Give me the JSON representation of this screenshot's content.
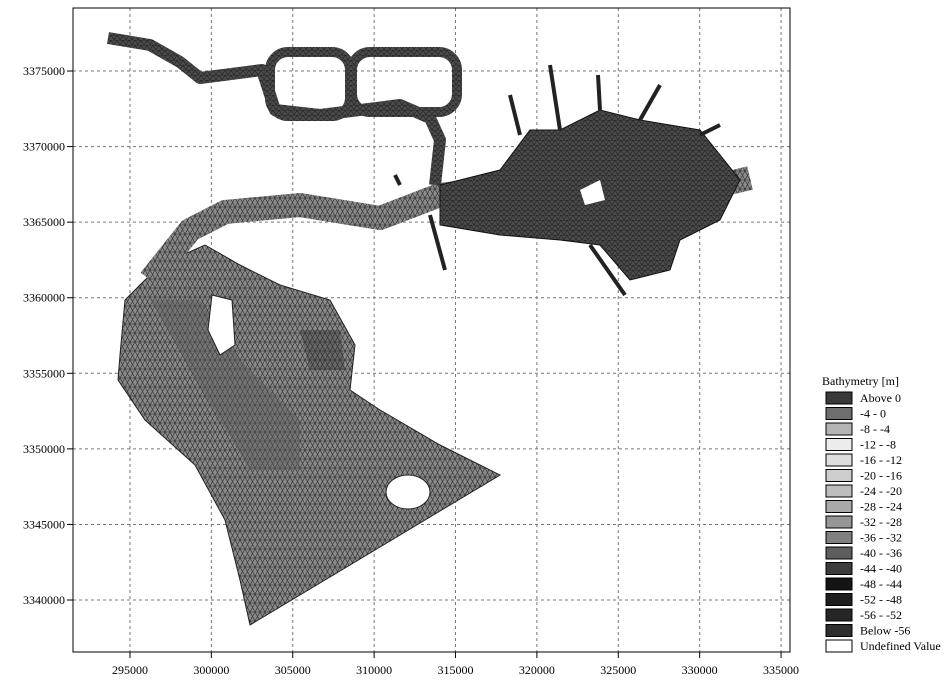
{
  "map": {
    "xlim": [
      291500,
      335550
    ],
    "ylim": [
      3336560,
      3379170
    ],
    "xticks": [
      295000,
      300000,
      305000,
      310000,
      315000,
      320000,
      325000,
      330000,
      335000
    ],
    "yticks": [
      3340000,
      3345000,
      3350000,
      3355000,
      3360000,
      3365000,
      3370000,
      3375000
    ],
    "grid": true,
    "legend": {
      "title": "Bathymetry [m]",
      "items": [
        {
          "label": "Above  0",
          "color": "#3a3a3a"
        },
        {
          "label": "-4 -  0",
          "color": "#6e6e6e"
        },
        {
          "label": "-8 -  -4",
          "color": "#b4b4b4"
        },
        {
          "label": "-12 -  -8",
          "color": "#ececec"
        },
        {
          "label": "-16 - -12",
          "color": "#dedede"
        },
        {
          "label": "-20 - -16",
          "color": "#cdcdcd"
        },
        {
          "label": "-24 - -20",
          "color": "#bdbdbd"
        },
        {
          "label": "-28 - -24",
          "color": "#a9a9a9"
        },
        {
          "label": "-32 - -28",
          "color": "#969696"
        },
        {
          "label": "-36 - -32",
          "color": "#808080"
        },
        {
          "label": "-40 - -36",
          "color": "#5e5e5e"
        },
        {
          "label": "-44 - -40",
          "color": "#3c3c3c"
        },
        {
          "label": "-48 - -44",
          "color": "#141414"
        },
        {
          "label": "-52 - -48",
          "color": "#1e1e1e"
        },
        {
          "label": "-56 - -52",
          "color": "#262626"
        },
        {
          "label": "Below -56",
          "color": "#2e2e2e"
        },
        {
          "label": "Undefined Value",
          "color": "#ffffff"
        }
      ]
    }
  }
}
